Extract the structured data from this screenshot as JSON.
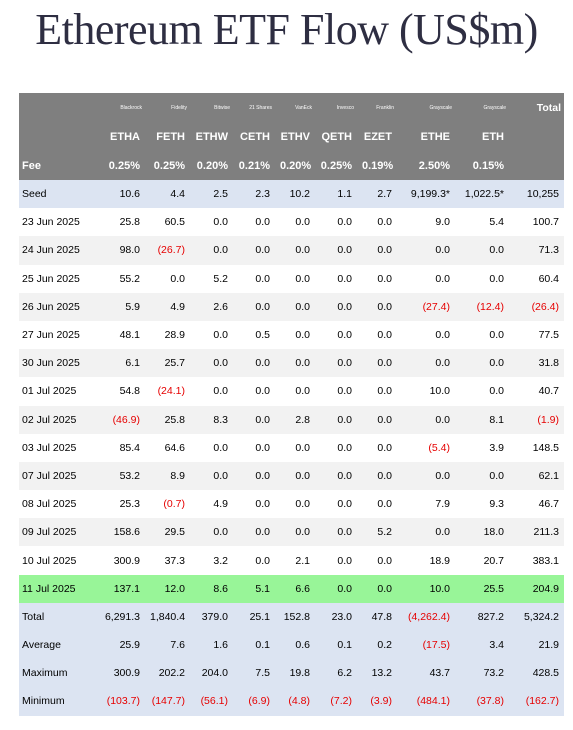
{
  "title": "Ethereum ETF Flow (US$m)",
  "colors": {
    "header_bg": "#7f7f7f",
    "seed_bg": "#dce4f2",
    "highlight_bg": "#98f598",
    "negative": "#e60000"
  },
  "issuers": [
    "Blackrock",
    "Fidelity",
    "Bitwise",
    "21 Shares",
    "VanEck",
    "Invesco",
    "Franklin",
    "Grayscale",
    "Grayscale"
  ],
  "total_header": "Total",
  "tickers": [
    "ETHA",
    "FETH",
    "ETHW",
    "CETH",
    "ETHV",
    "QETH",
    "EZET",
    "ETHE",
    "ETH"
  ],
  "fee_label": "Fee",
  "fees": [
    "0.25%",
    "0.25%",
    "0.20%",
    "0.21%",
    "0.20%",
    "0.25%",
    "0.19%",
    "2.50%",
    "0.15%"
  ],
  "rows": [
    {
      "label": "Seed",
      "values": [
        "10.6",
        "4.4",
        "2.5",
        "2.3",
        "10.2",
        "1.1",
        "2.7",
        "9,199.3*",
        "1,022.5*"
      ],
      "total": "10,255",
      "style": "seed"
    },
    {
      "label": "23 Jun 2025",
      "values": [
        "25.8",
        "60.5",
        "0.0",
        "0.0",
        "0.0",
        "0.0",
        "0.0",
        "9.0",
        "5.4"
      ],
      "total": "100.7",
      "style": "plain"
    },
    {
      "label": "24 Jun 2025",
      "values": [
        "98.0",
        "(26.7)",
        "0.0",
        "0.0",
        "0.0",
        "0.0",
        "0.0",
        "0.0",
        "0.0"
      ],
      "total": "71.3",
      "style": "alt"
    },
    {
      "label": "25 Jun 2025",
      "values": [
        "55.2",
        "0.0",
        "5.2",
        "0.0",
        "0.0",
        "0.0",
        "0.0",
        "0.0",
        "0.0"
      ],
      "total": "60.4",
      "style": "plain"
    },
    {
      "label": "26 Jun 2025",
      "values": [
        "5.9",
        "4.9",
        "2.6",
        "0.0",
        "0.0",
        "0.0",
        "0.0",
        "(27.4)",
        "(12.4)"
      ],
      "total": "(26.4)",
      "style": "alt"
    },
    {
      "label": "27 Jun 2025",
      "values": [
        "48.1",
        "28.9",
        "0.0",
        "0.5",
        "0.0",
        "0.0",
        "0.0",
        "0.0",
        "0.0"
      ],
      "total": "77.5",
      "style": "plain"
    },
    {
      "label": "30 Jun 2025",
      "values": [
        "6.1",
        "25.7",
        "0.0",
        "0.0",
        "0.0",
        "0.0",
        "0.0",
        "0.0",
        "0.0"
      ],
      "total": "31.8",
      "style": "alt"
    },
    {
      "label": "01 Jul 2025",
      "values": [
        "54.8",
        "(24.1)",
        "0.0",
        "0.0",
        "0.0",
        "0.0",
        "0.0",
        "10.0",
        "0.0"
      ],
      "total": "40.7",
      "style": "plain"
    },
    {
      "label": "02 Jul 2025",
      "values": [
        "(46.9)",
        "25.8",
        "8.3",
        "0.0",
        "2.8",
        "0.0",
        "0.0",
        "0.0",
        "8.1"
      ],
      "total": "(1.9)",
      "style": "alt"
    },
    {
      "label": "03 Jul 2025",
      "values": [
        "85.4",
        "64.6",
        "0.0",
        "0.0",
        "0.0",
        "0.0",
        "0.0",
        "(5.4)",
        "3.9"
      ],
      "total": "148.5",
      "style": "plain"
    },
    {
      "label": "07 Jul 2025",
      "values": [
        "53.2",
        "8.9",
        "0.0",
        "0.0",
        "0.0",
        "0.0",
        "0.0",
        "0.0",
        "0.0"
      ],
      "total": "62.1",
      "style": "alt"
    },
    {
      "label": "08 Jul 2025",
      "values": [
        "25.3",
        "(0.7)",
        "4.9",
        "0.0",
        "0.0",
        "0.0",
        "0.0",
        "7.9",
        "9.3"
      ],
      "total": "46.7",
      "style": "plain"
    },
    {
      "label": "09 Jul 2025",
      "values": [
        "158.6",
        "29.5",
        "0.0",
        "0.0",
        "0.0",
        "0.0",
        "5.2",
        "0.0",
        "18.0"
      ],
      "total": "211.3",
      "style": "alt"
    },
    {
      "label": "10 Jul 2025",
      "values": [
        "300.9",
        "37.3",
        "3.2",
        "0.0",
        "2.1",
        "0.0",
        "0.0",
        "18.9",
        "20.7"
      ],
      "total": "383.1",
      "style": "plain"
    },
    {
      "label": "11 Jul 2025",
      "values": [
        "137.1",
        "12.0",
        "8.6",
        "5.1",
        "6.6",
        "0.0",
        "0.0",
        "10.0",
        "25.5"
      ],
      "total": "204.9",
      "style": "highlight"
    },
    {
      "label": "Total",
      "values": [
        "6,291.3",
        "1,840.4",
        "379.0",
        "25.1",
        "152.8",
        "23.0",
        "47.8",
        "(4,262.4)",
        "827.2"
      ],
      "total": "5,324.2",
      "style": "summary"
    },
    {
      "label": "Average",
      "values": [
        "25.9",
        "7.6",
        "1.6",
        "0.1",
        "0.6",
        "0.1",
        "0.2",
        "(17.5)",
        "3.4"
      ],
      "total": "21.9",
      "style": "summary"
    },
    {
      "label": "Maximum",
      "values": [
        "300.9",
        "202.2",
        "204.0",
        "7.5",
        "19.8",
        "6.2",
        "13.2",
        "43.7",
        "73.2"
      ],
      "total": "428.5",
      "style": "summary"
    },
    {
      "label": "Minimum",
      "values": [
        "(103.7)",
        "(147.7)",
        "(56.1)",
        "(6.9)",
        "(4.8)",
        "(7.2)",
        "(3.9)",
        "(484.1)",
        "(37.8)"
      ],
      "total": "(162.7)",
      "style": "summary"
    }
  ]
}
